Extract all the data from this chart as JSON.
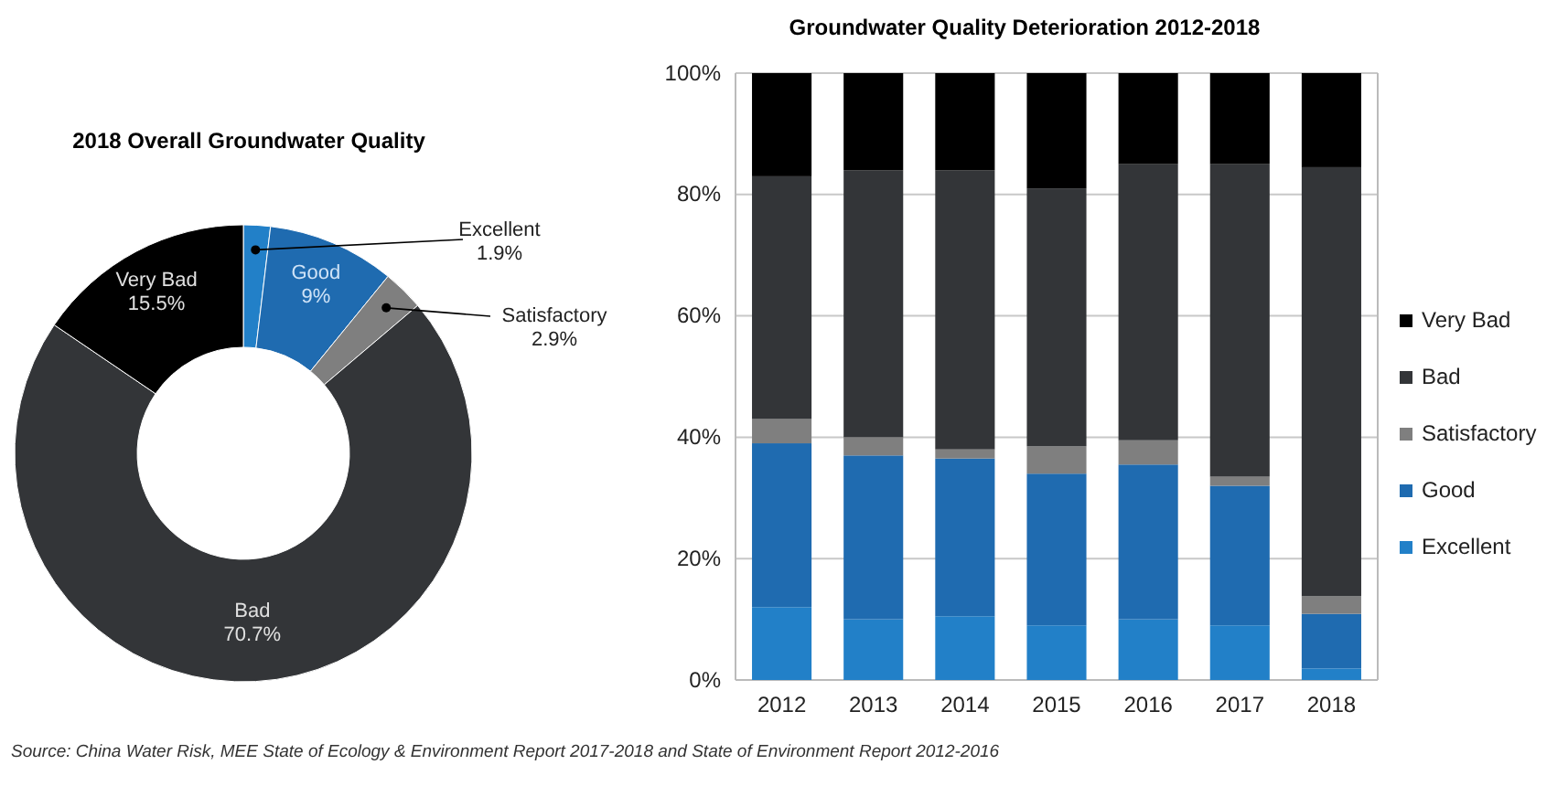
{
  "chart_data": [
    {
      "type": "donut",
      "title": "2018 Overall Groundwater Quality",
      "categories": [
        "Excellent",
        "Good",
        "Satisfactory",
        "Bad",
        "Very Bad"
      ],
      "values": [
        1.9,
        9,
        2.9,
        70.7,
        15.5
      ],
      "colors": [
        "#2280c8",
        "#1f6bb0",
        "#7f7f7f",
        "#333538",
        "#000000"
      ],
      "value_labels": [
        "1.9%",
        "9%",
        "2.9%",
        "70.7%",
        "15.5%"
      ],
      "legend": false
    },
    {
      "type": "bar",
      "title": "Groundwater Quality Deterioration  2012-2018",
      "categories": [
        "2012",
        "2013",
        "2014",
        "2015",
        "2016",
        "2017",
        "2018"
      ],
      "stacked": true,
      "ylim": [
        0,
        100
      ],
      "yticks": [
        {
          "value": 0,
          "label": "0%"
        },
        {
          "value": 20,
          "label": "20%"
        },
        {
          "value": 40,
          "label": "40%"
        },
        {
          "value": 60,
          "label": "60%"
        },
        {
          "value": 80,
          "label": "80%"
        },
        {
          "value": 100,
          "label": "100%"
        }
      ],
      "grid": "y",
      "legend": "right",
      "series": [
        {
          "name": "Excellent",
          "color": "#2280c8",
          "values": [
            12,
            10,
            10.5,
            9,
            10,
            9,
            1.9
          ]
        },
        {
          "name": "Good",
          "color": "#1f6bb0",
          "values": [
            27,
            27,
            26,
            25,
            25.5,
            23,
            9
          ]
        },
        {
          "name": "Satisfactory",
          "color": "#7f7f7f",
          "values": [
            4,
            3,
            1.5,
            4.5,
            4,
            1.5,
            2.9
          ]
        },
        {
          "name": "Bad",
          "color": "#333538",
          "values": [
            40,
            44,
            46,
            42.5,
            45.5,
            51.5,
            70.7
          ]
        },
        {
          "name": "Very Bad",
          "color": "#000000",
          "values": [
            17,
            16,
            16,
            19,
            15,
            15,
            15.5
          ]
        }
      ],
      "annotations": [
        "Source: China Water Risk, MEE State of Ecology & Environment Report 2017-2018  and State of Environment Report 2012-2016"
      ]
    }
  ]
}
